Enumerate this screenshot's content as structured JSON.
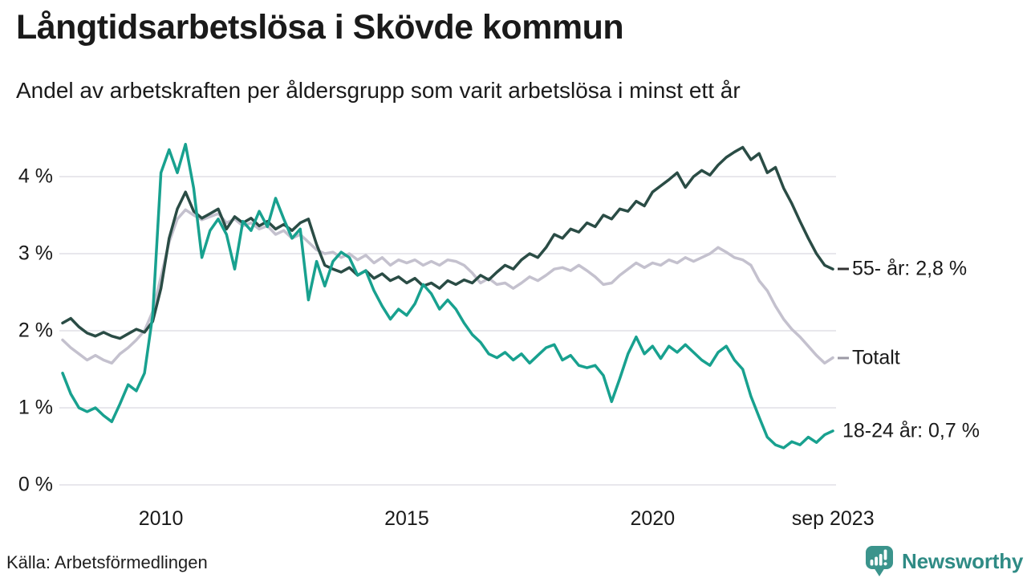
{
  "header": {
    "title": "Långtidsarbetslösa i Skövde kommun",
    "subtitle": "Andel av arbetskraften per åldersgrupp som varit arbetslösa i minst ett år"
  },
  "footer": {
    "source": "Källa: Arbetsförmedlingen",
    "logo_text": "Newsworthy"
  },
  "colors": {
    "series_55": "#2a4c45",
    "series_total": "#c4c1ce",
    "series_18_24": "#18a18f",
    "gridline": "#e8e7ec",
    "text": "#1a1a1a",
    "logo_teal": "#3b948c"
  },
  "chart_data": {
    "type": "line",
    "title": "Långtidsarbetslösa i Skövde kommun",
    "subtitle": "Andel av arbetskraften per åldersgrupp som varit arbetslösa i minst ett år",
    "unit": "% av arbetskraften",
    "x_start_year": 2008.0,
    "x_step_years": 0.16667,
    "ylim": [
      0,
      4.6
    ],
    "grid": "horizontal",
    "legend_position": "right-end-labels",
    "y_ticks": [
      {
        "value": 0,
        "label": "0 %"
      },
      {
        "value": 1,
        "label": "1 %"
      },
      {
        "value": 2,
        "label": "2 %"
      },
      {
        "value": 3,
        "label": "3 %"
      },
      {
        "value": 4,
        "label": "4 %"
      }
    ],
    "x_ticks": [
      {
        "year": 2010,
        "label": "2010"
      },
      {
        "year": 2015,
        "label": "2015"
      },
      {
        "year": 2020,
        "label": "2020"
      },
      {
        "year": 2023.67,
        "label": "sep 2023"
      }
    ],
    "series": [
      {
        "name": "Totalt",
        "end_label": "Totalt",
        "end_value": 1.65,
        "color": "#c4c1ce",
        "end_dash": true,
        "end_dash_color": "#9b98a4",
        "values": [
          1.88,
          1.78,
          1.7,
          1.62,
          1.68,
          1.62,
          1.58,
          1.7,
          1.78,
          1.88,
          2.0,
          2.25,
          2.7,
          3.15,
          3.45,
          3.57,
          3.5,
          3.44,
          3.48,
          3.52,
          3.4,
          3.45,
          3.36,
          3.4,
          3.32,
          3.36,
          3.25,
          3.3,
          3.2,
          3.25,
          3.15,
          3.05,
          3.0,
          3.02,
          2.95,
          3.0,
          2.92,
          2.98,
          2.88,
          2.95,
          2.85,
          2.92,
          2.88,
          2.92,
          2.85,
          2.9,
          2.85,
          2.92,
          2.9,
          2.85,
          2.75,
          2.62,
          2.68,
          2.6,
          2.62,
          2.55,
          2.62,
          2.7,
          2.65,
          2.72,
          2.8,
          2.82,
          2.78,
          2.85,
          2.78,
          2.7,
          2.6,
          2.62,
          2.72,
          2.8,
          2.88,
          2.82,
          2.88,
          2.85,
          2.92,
          2.88,
          2.95,
          2.9,
          2.95,
          3.0,
          3.08,
          3.02,
          2.95,
          2.92,
          2.85,
          2.65,
          2.52,
          2.32,
          2.15,
          2.02,
          1.92,
          1.8,
          1.68,
          1.58,
          1.65
        ]
      },
      {
        "name": "55- år",
        "end_label": "55- år: 2,8 %",
        "end_value": 2.8,
        "color": "#2a4c45",
        "end_dash": true,
        "end_dash_color": "#333333",
        "values": [
          2.1,
          2.16,
          2.05,
          1.97,
          1.93,
          1.98,
          1.93,
          1.9,
          1.96,
          2.02,
          1.98,
          2.12,
          2.55,
          3.2,
          3.58,
          3.8,
          3.55,
          3.46,
          3.52,
          3.58,
          3.32,
          3.48,
          3.4,
          3.46,
          3.36,
          3.42,
          3.32,
          3.38,
          3.3,
          3.4,
          3.45,
          3.12,
          2.85,
          2.8,
          2.76,
          2.82,
          2.72,
          2.78,
          2.68,
          2.74,
          2.65,
          2.7,
          2.62,
          2.68,
          2.58,
          2.62,
          2.55,
          2.65,
          2.6,
          2.66,
          2.62,
          2.72,
          2.66,
          2.76,
          2.85,
          2.8,
          2.92,
          3.0,
          2.95,
          3.08,
          3.25,
          3.2,
          3.32,
          3.28,
          3.4,
          3.35,
          3.5,
          3.45,
          3.58,
          3.55,
          3.68,
          3.62,
          3.8,
          3.88,
          3.96,
          4.05,
          3.86,
          4.0,
          4.08,
          4.02,
          4.15,
          4.25,
          4.32,
          4.38,
          4.22,
          4.3,
          4.05,
          4.12,
          3.85,
          3.65,
          3.42,
          3.2,
          3.0,
          2.85,
          2.8
        ]
      },
      {
        "name": "18-24 år",
        "end_label": "18-24 år: 0,7 %",
        "end_value": 0.7,
        "color": "#18a18f",
        "end_dash": false,
        "end_dash_color": "",
        "values": [
          1.45,
          1.18,
          1.0,
          0.95,
          1.0,
          0.9,
          0.82,
          1.05,
          1.3,
          1.22,
          1.45,
          2.2,
          4.05,
          4.35,
          4.05,
          4.42,
          3.85,
          2.95,
          3.3,
          3.45,
          3.25,
          2.8,
          3.42,
          3.3,
          3.55,
          3.35,
          3.72,
          3.45,
          3.2,
          3.32,
          2.4,
          2.9,
          2.58,
          2.9,
          3.02,
          2.95,
          2.72,
          2.78,
          2.52,
          2.32,
          2.15,
          2.28,
          2.2,
          2.35,
          2.6,
          2.48,
          2.28,
          2.4,
          2.28,
          2.1,
          1.95,
          1.85,
          1.7,
          1.65,
          1.72,
          1.62,
          1.7,
          1.58,
          1.68,
          1.78,
          1.82,
          1.62,
          1.68,
          1.55,
          1.52,
          1.55,
          1.42,
          1.08,
          1.38,
          1.7,
          1.92,
          1.7,
          1.8,
          1.64,
          1.8,
          1.72,
          1.82,
          1.72,
          1.62,
          1.55,
          1.72,
          1.8,
          1.62,
          1.5,
          1.15,
          0.88,
          0.62,
          0.52,
          0.48,
          0.56,
          0.52,
          0.62,
          0.55,
          0.65,
          0.7
        ]
      }
    ]
  }
}
